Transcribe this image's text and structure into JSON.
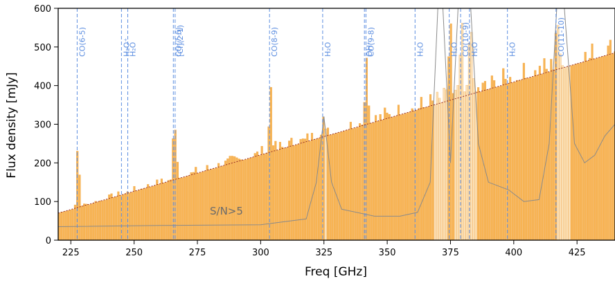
{
  "chart_data": {
    "type": "bar",
    "xlabel": "Freq [GHz]",
    "ylabel": "Flux density [mJy]",
    "xlim": [
      220,
      440
    ],
    "ylim": [
      0,
      600
    ],
    "xticks": [
      225,
      250,
      275,
      300,
      325,
      350,
      375,
      400,
      425
    ],
    "yticks": [
      0,
      100,
      200,
      300,
      400,
      500,
      600
    ],
    "bin_width_ghz": 0.9,
    "continuum": {
      "f0": 220,
      "v0": 70,
      "f1": 440,
      "v1": 485
    },
    "lines": [
      {
        "label": "CO(6-5)",
        "freq": 227.5,
        "peak": 260
      },
      {
        "label": "CO(7-6)",
        "freq": 265.5,
        "peak": 335
      },
      {
        "label": "[CI](2-1)",
        "freq": 266.2,
        "peak": 250
      },
      {
        "label": "CO(8-9)",
        "freq": 303.5,
        "peak": 410
      },
      {
        "label": "OH⁺",
        "freq": 341.0,
        "peak": 380
      },
      {
        "label": "CO(9-8)",
        "freq": 341.6,
        "peak": 475
      },
      {
        "label": "CO(10-9)",
        "freq": 379.0,
        "peak": 600
      },
      {
        "label": "CO(11-10)",
        "freq": 416.7,
        "peak": 600
      },
      {
        "label": "H₂O⁺",
        "freq": 245.0,
        "peak": 0
      },
      {
        "label": "H₂O",
        "freq": 247.5,
        "peak": 0
      },
      {
        "label": "H₂O",
        "freq": 324.5,
        "peak": 320
      },
      {
        "label": "H₂O",
        "freq": 361.0,
        "peak": 330
      },
      {
        "label": "H₂O",
        "freq": 374.5,
        "peak": 600
      },
      {
        "label": "H₂O",
        "freq": 382.5,
        "peak": 600
      },
      {
        "label": "H₂O",
        "freq": 397.5,
        "peak": 0
      }
    ],
    "sn5_threshold": [
      [
        220,
        35
      ],
      [
        260,
        38
      ],
      [
        300,
        40
      ],
      [
        318,
        55
      ],
      [
        322,
        150
      ],
      [
        325,
        320
      ],
      [
        328,
        150
      ],
      [
        332,
        80
      ],
      [
        345,
        62
      ],
      [
        355,
        62
      ],
      [
        362,
        72
      ],
      [
        367,
        150
      ],
      [
        370,
        600
      ],
      [
        372,
        600
      ],
      [
        375,
        200
      ],
      [
        378,
        600
      ],
      [
        383,
        600
      ],
      [
        386,
        250
      ],
      [
        390,
        150
      ],
      [
        398,
        130
      ],
      [
        404,
        100
      ],
      [
        410,
        105
      ],
      [
        414,
        250
      ],
      [
        417,
        600
      ],
      [
        420,
        600
      ],
      [
        424,
        250
      ],
      [
        428,
        200
      ],
      [
        432,
        220
      ],
      [
        436,
        270
      ],
      [
        440,
        300
      ]
    ],
    "annotations": [
      "S/N>5"
    ]
  }
}
